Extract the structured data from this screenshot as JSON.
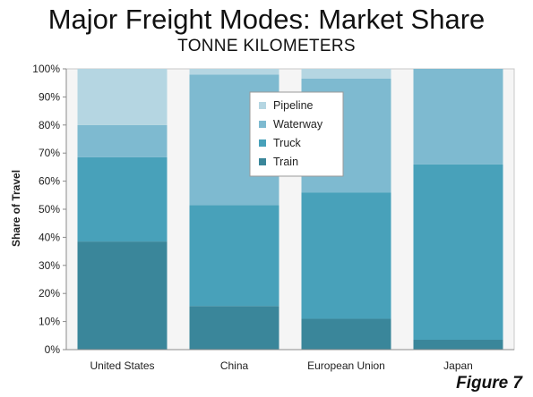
{
  "header": {
    "title": "Major Freight Modes: Market Share",
    "subtitle": "TONNE KILOMETERS",
    "figure": "Figure 7"
  },
  "chart_data": {
    "type": "bar",
    "stacked": true,
    "categories": [
      "United States",
      "China",
      "European Union",
      "Japan"
    ],
    "series": [
      {
        "name": "Train",
        "color": "#3a869a",
        "values": [
          38.5,
          15.5,
          11,
          3.5
        ]
      },
      {
        "name": "Truck",
        "color": "#48a1ba",
        "values": [
          30,
          36,
          45,
          62.5
        ]
      },
      {
        "name": "Waterway",
        "color": "#7ebad0",
        "values": [
          11.5,
          46.5,
          40.5,
          34
        ]
      },
      {
        "name": "Pipeline",
        "color": "#b5d6e2",
        "values": [
          20,
          2,
          3.5,
          0
        ]
      }
    ],
    "ylabel": "Share of Travel",
    "ylim": [
      0,
      100
    ],
    "yticks": [
      "0%",
      "10%",
      "20%",
      "30%",
      "40%",
      "50%",
      "60%",
      "70%",
      "80%",
      "90%",
      "100%"
    ],
    "legend_position": "center-top",
    "legend_order": [
      "Pipeline",
      "Waterway",
      "Truck",
      "Train"
    ]
  }
}
